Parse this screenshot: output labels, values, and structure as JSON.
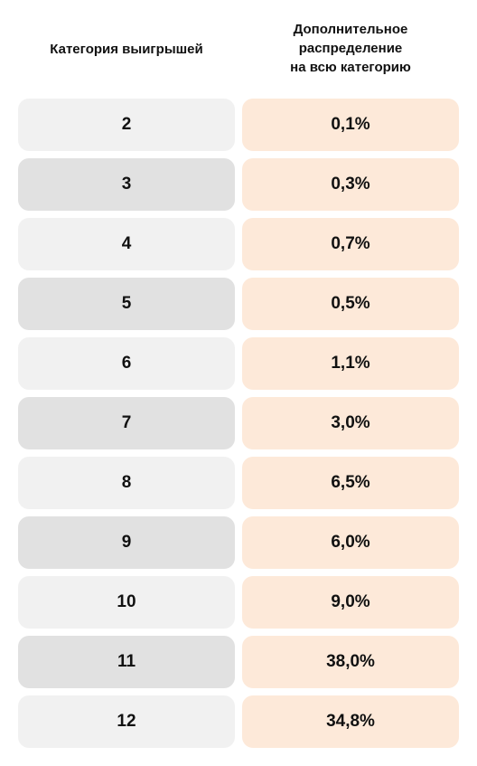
{
  "header": {
    "category_label": "Категория выигрышей",
    "distribution_label_lines": [
      "Дополнительное",
      "распределение",
      "на всю категорию"
    ]
  },
  "rows": [
    {
      "category": "2",
      "value": "0,1%"
    },
    {
      "category": "3",
      "value": "0,3%"
    },
    {
      "category": "4",
      "value": "0,7%"
    },
    {
      "category": "5",
      "value": "0,5%"
    },
    {
      "category": "6",
      "value": "1,1%"
    },
    {
      "category": "7",
      "value": "3,0%"
    },
    {
      "category": "8",
      "value": "6,5%"
    },
    {
      "category": "9",
      "value": "6,0%"
    },
    {
      "category": "10",
      "value": "9,0%"
    },
    {
      "category": "11",
      "value": "38,0%"
    },
    {
      "category": "12",
      "value": "34,8%"
    }
  ],
  "colors": {
    "category_light": "#f1f1f1",
    "category_dark": "#e1e1e1",
    "value_bg": "#fde9d9",
    "text": "#111111"
  }
}
